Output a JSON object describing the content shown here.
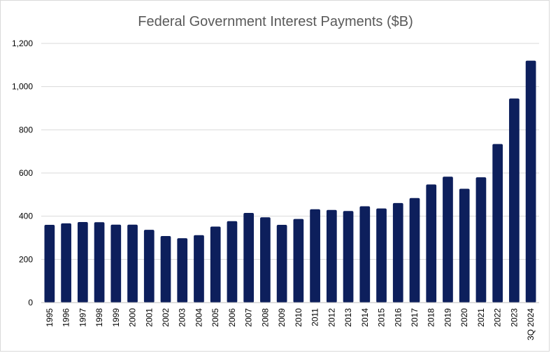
{
  "chart_data": {
    "type": "bar",
    "title": "Federal Government Interest Payments ($B)",
    "xlabel": "",
    "ylabel": "",
    "ylim": [
      0,
      1200
    ],
    "y_ticks": [
      0,
      200,
      400,
      600,
      800,
      1000,
      1200
    ],
    "y_tick_labels": [
      "0",
      "200",
      "400",
      "600",
      "800",
      "1,000",
      "1,200"
    ],
    "grid": true,
    "legend": "none",
    "bar_color": "#0d1f5c",
    "categories": [
      "1995",
      "1996",
      "1997",
      "1998",
      "1999",
      "2000",
      "2001",
      "2002",
      "2003",
      "2004",
      "2005",
      "2006",
      "2007",
      "2008",
      "2009",
      "2010",
      "2011",
      "2012",
      "2013",
      "2014",
      "2015",
      "2016",
      "2017",
      "2018",
      "2019",
      "2020",
      "2021",
      "2022",
      "2023",
      "3Q 2024"
    ],
    "values": [
      360,
      367,
      373,
      372,
      361,
      361,
      337,
      308,
      298,
      312,
      352,
      377,
      415,
      395,
      360,
      387,
      432,
      429,
      424,
      446,
      436,
      461,
      484,
      547,
      583,
      527,
      580,
      734,
      945,
      1120
    ]
  }
}
